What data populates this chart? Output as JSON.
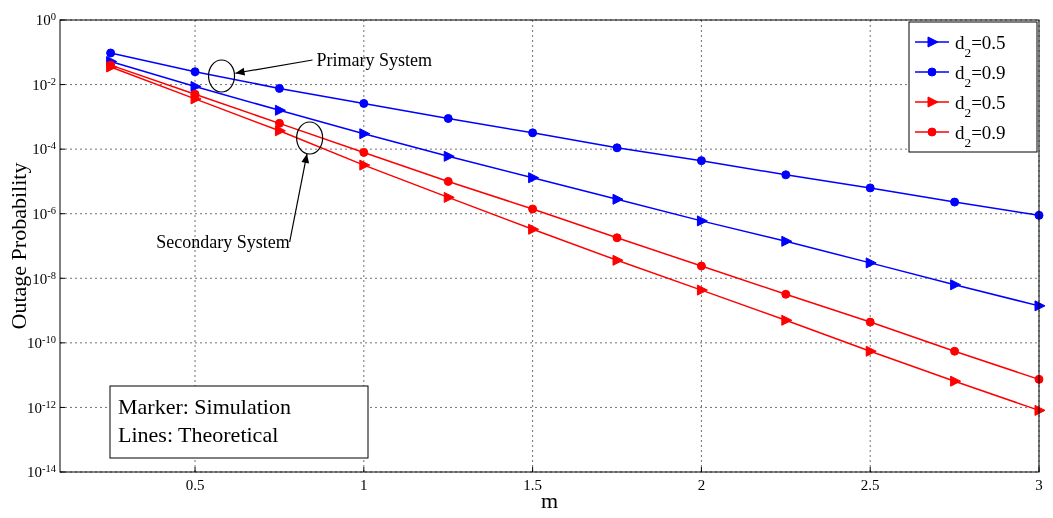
{
  "chart_data": {
    "type": "line",
    "xlabel": "m",
    "ylabel": "Outage Probability",
    "log": "y",
    "grid": true,
    "legend": "top right",
    "line_style": "solid",
    "x": [
      0.25,
      0.5,
      0.75,
      1,
      1.25,
      1.5,
      1.75,
      2,
      2.25,
      2.5,
      2.75,
      3
    ],
    "xlim": [
      0.1,
      3
    ],
    "xticks": [
      0.5,
      1,
      1.5,
      2,
      2.5,
      3
    ],
    "ylim": [
      1e-14,
      1
    ],
    "yticks": [
      {
        "value": 1,
        "label": "10$^{0}$"
      },
      {
        "value": 0.01,
        "label": "10$^{-2}$"
      },
      {
        "value": 0.0001,
        "label": "10$^{-4}$"
      },
      {
        "value": 1e-06,
        "label": "10$^{-6}$"
      },
      {
        "value": 1e-08,
        "label": "10$^{-8}$"
      },
      {
        "value": 1e-10,
        "label": "10$^{-10}$"
      },
      {
        "value": 1e-12,
        "label": "10$^{-12}$"
      },
      {
        "value": 1e-14,
        "label": "10$^{-14}$"
      }
    ],
    "series": [
      {
        "name": "d$_{2}$=0.5",
        "color": "#0000ff",
        "marker": "triangle",
        "values": [
          0.052,
          0.0087,
          0.0016,
          0.0003,
          6e-05,
          1.3e-05,
          2.8e-06,
          6e-07,
          1.4e-07,
          3e-08,
          6.3e-09,
          1.4e-09
        ]
      },
      {
        "name": "d$_{2}$=0.9",
        "color": "#0000ff",
        "marker": "circle",
        "values": [
          0.095,
          0.025,
          0.0076,
          0.0026,
          0.00089,
          0.00032,
          0.00011,
          4.4e-05,
          1.6e-05,
          6.3e-06,
          2.3e-06,
          8.9e-07
        ]
      },
      {
        "name": "d$_{2}$=0.5",
        "color": "#ff0000",
        "marker": "triangle",
        "values": [
          0.035,
          0.0036,
          0.00037,
          3.2e-05,
          3.2e-06,
          3.3e-07,
          3.6e-08,
          4.3e-09,
          5e-10,
          5.5e-11,
          6.5e-12,
          8.1e-13
        ]
      },
      {
        "name": "d$_{2}$=0.9",
        "color": "#ff0000",
        "marker": "circle",
        "values": [
          0.04,
          0.005,
          0.00063,
          7.9e-05,
          1e-05,
          1.4e-06,
          1.8e-07,
          2.4e-08,
          3.2e-09,
          4.4e-10,
          5.5e-11,
          7.4e-12
        ]
      }
    ],
    "annotations": [
      "Primary System",
      "Secondary System",
      "Marker: Simulation",
      "Lines: Theoretical"
    ]
  }
}
